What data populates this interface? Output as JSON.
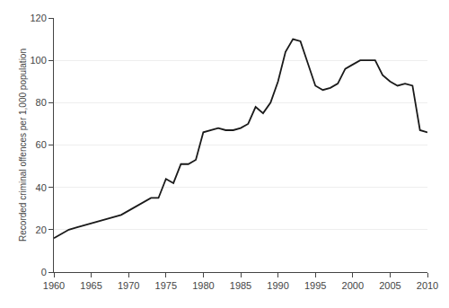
{
  "chart_data": {
    "type": "line",
    "x": [
      1960,
      1961,
      1962,
      1963,
      1964,
      1965,
      1966,
      1967,
      1968,
      1969,
      1970,
      1971,
      1972,
      1973,
      1974,
      1975,
      1976,
      1977,
      1978,
      1979,
      1980,
      1981,
      1982,
      1983,
      1984,
      1985,
      1986,
      1987,
      1988,
      1989,
      1990,
      1991,
      1992,
      1993,
      1994,
      1995,
      1996,
      1997,
      1998,
      1999,
      2000,
      2001,
      2002,
      2003,
      2004,
      2005,
      2006,
      2007,
      2008,
      2009,
      2010
    ],
    "values": [
      16,
      18,
      20,
      21,
      22,
      23,
      24,
      25,
      26,
      27,
      29,
      31,
      33,
      35,
      35,
      44,
      42,
      51,
      51,
      53,
      66,
      67,
      68,
      67,
      67,
      68,
      70,
      78,
      75,
      80,
      90,
      104,
      110,
      109,
      98,
      88,
      86,
      87,
      89,
      96,
      98,
      100,
      100,
      100,
      93,
      90,
      88,
      89,
      88,
      67,
      66
    ],
    "ylabel": "Recorded criminal offences per 1,000 population",
    "xlim": [
      1960,
      2010
    ],
    "ylim": [
      0,
      120
    ],
    "xticks": [
      1960,
      1965,
      1970,
      1975,
      1980,
      1985,
      1990,
      1995,
      2000,
      2005,
      2010
    ],
    "yticks": [
      0,
      20,
      40,
      60,
      80,
      100,
      120
    ],
    "color": "#1a1a1a",
    "grid": true
  }
}
